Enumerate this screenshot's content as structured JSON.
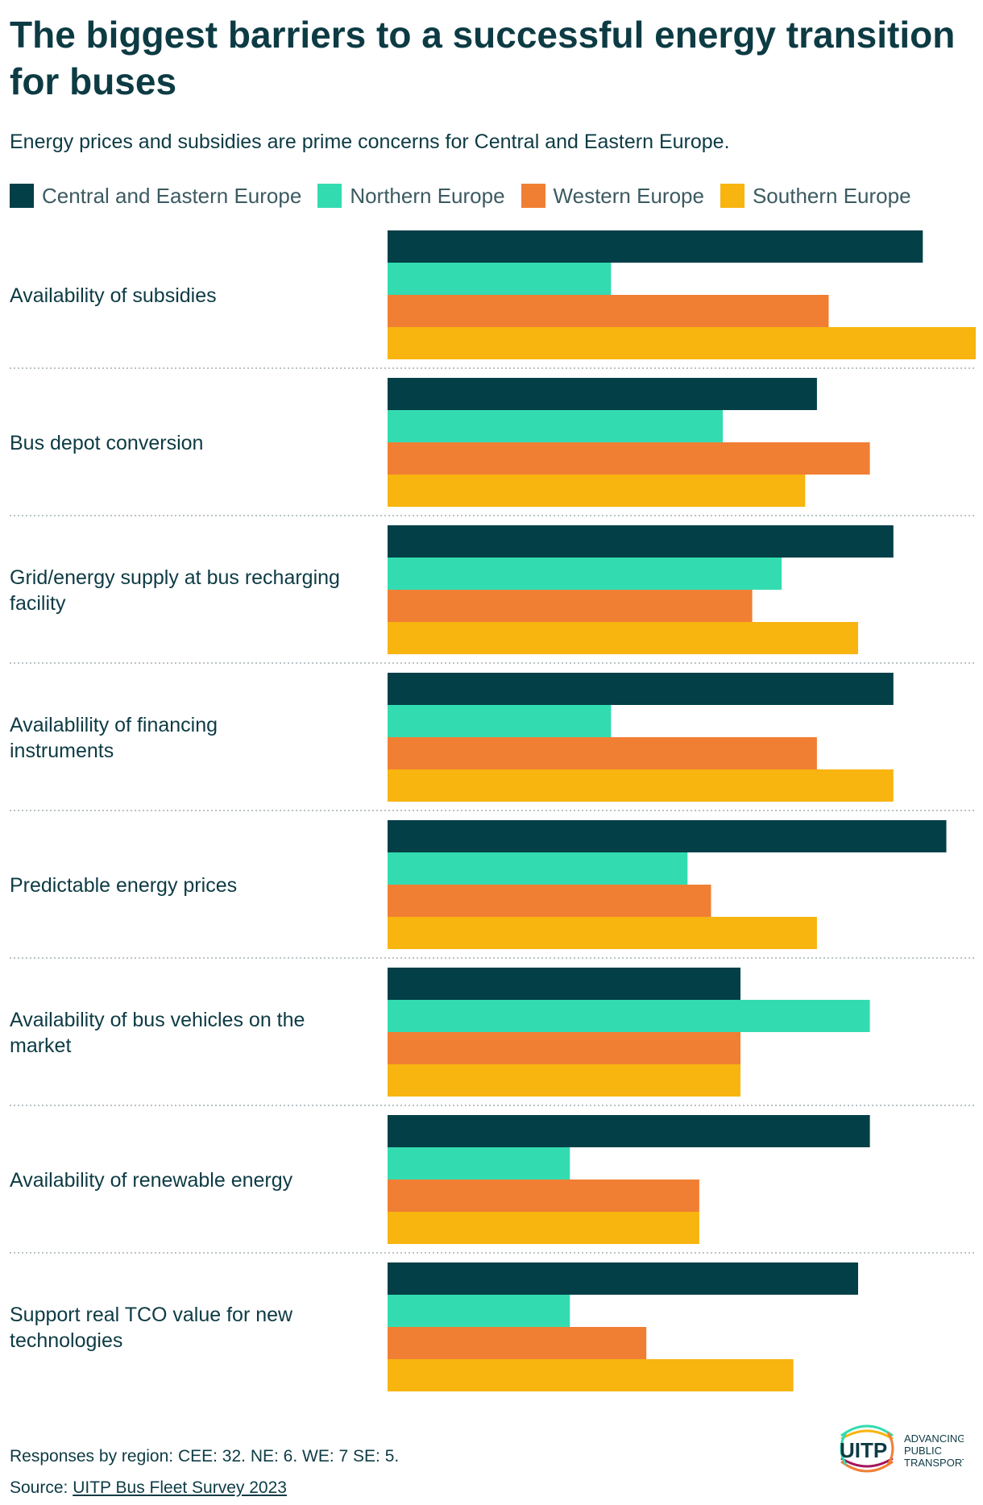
{
  "title": "The biggest barriers to a successful energy transition for buses",
  "subtitle": "Energy prices and subsidies are prime concerns for Central and Eastern Europe.",
  "colors": {
    "cee": "#023f47",
    "ne": "#33dcb0",
    "we": "#f07f34",
    "se": "#f8b40f",
    "text": "#0d3b44",
    "divider": "#b9c3c6"
  },
  "chart_data": {
    "type": "bar",
    "orientation": "horizontal",
    "title": "The biggest barriers to a successful energy transition for buses",
    "xlabel": "",
    "ylabel": "",
    "xlim": [
      0,
      100
    ],
    "grid": false,
    "legend_position": "top",
    "categories": [
      "Availability of subsidies",
      "Bus depot conversion",
      "Grid/energy supply at bus recharging facility",
      "Availablility of financing instruments",
      "Predictable energy prices",
      "Availability of bus vehicles on the market",
      "Availability of renewable energy",
      "Support real TCO value for new technologies"
    ],
    "series": [
      {
        "name": "Central and Eastern Europe",
        "key": "cee",
        "values": [
          91,
          73,
          86,
          86,
          95,
          60,
          82,
          80
        ]
      },
      {
        "name": "Northern Europe",
        "key": "ne",
        "values": [
          38,
          57,
          67,
          38,
          51,
          82,
          31,
          31
        ]
      },
      {
        "name": "Western Europe",
        "key": "we",
        "values": [
          75,
          82,
          62,
          73,
          55,
          60,
          53,
          44
        ]
      },
      {
        "name": "Southern Europe",
        "key": "se",
        "values": [
          100,
          71,
          80,
          86,
          73,
          60,
          53,
          69
        ]
      }
    ]
  },
  "footer": {
    "note": "Responses by region: CEE: 32. NE: 6. WE: 7 SE: 5.",
    "source_label": "Source: ",
    "source_link": "UITP Bus Fleet Survey 2023"
  },
  "logo": {
    "wordmark": "UITP",
    "line1": "ADVANCING",
    "line2": "PUBLIC",
    "line3": "TRANSPORT"
  }
}
